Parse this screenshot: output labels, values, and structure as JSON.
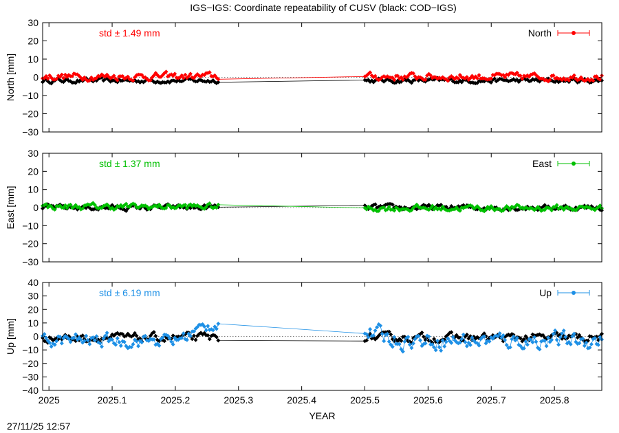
{
  "title": "IGS−IGS: Coordinate repeatability of CUSV (black: COD−IGS)",
  "timestamp": "27/11/25 12:57",
  "colors": {
    "comparison": "#000000",
    "north": "#ff0000",
    "east": "#00c000",
    "up": "#1e90e6"
  },
  "chart_data": [
    {
      "type": "line",
      "component": "North",
      "ylabel": "North [mm]",
      "xlabel": "",
      "ylim": [
        -30,
        30
      ],
      "yticks": [
        -30,
        -20,
        -10,
        0,
        10,
        20,
        30
      ],
      "ytick_labels": [
        "−30",
        "−20",
        "−10",
        "0",
        "10",
        "20",
        "30"
      ],
      "xlim": [
        2024.99,
        2025.875
      ],
      "xticks": [
        2025,
        2025.1,
        2025.2,
        2025.3,
        2025.4,
        2025.5,
        2025.6,
        2025.7,
        2025.8
      ],
      "xtick_labels": [],
      "std_label": "std ± 1.49 mm",
      "legend": "top-right",
      "series": [
        {
          "name": "North",
          "color": "#ff0000",
          "segments": [
            {
              "x_start": 2024.99,
              "x_end": 2025.268,
              "mean": 0.5,
              "amp": 1.6
            },
            {
              "x_start": 2025.5,
              "x_end": 2025.875,
              "mean": 0.3,
              "amp": 1.6
            }
          ]
        },
        {
          "name": "",
          "color": "#000000",
          "segments": [
            {
              "x_start": 2024.99,
              "x_end": 2025.268,
              "mean": -1.8,
              "amp": 1.0
            },
            {
              "x_start": 2025.5,
              "x_end": 2025.875,
              "mean": -1.8,
              "amp": 1.0
            }
          ]
        }
      ]
    },
    {
      "type": "line",
      "component": "East",
      "ylabel": "East [mm]",
      "xlabel": "",
      "ylim": [
        -30,
        30
      ],
      "yticks": [
        -30,
        -20,
        -10,
        0,
        10,
        20,
        30
      ],
      "ytick_labels": [
        "−30",
        "−20",
        "−10",
        "0",
        "10",
        "20",
        "30"
      ],
      "xlim": [
        2024.99,
        2025.875
      ],
      "xticks": [
        2025,
        2025.1,
        2025.2,
        2025.3,
        2025.4,
        2025.5,
        2025.6,
        2025.7,
        2025.8
      ],
      "xtick_labels": [],
      "std_label": "std ± 1.37 mm",
      "legend": "top-right",
      "series": [
        {
          "name": "East",
          "color": "#00c000",
          "segments": [
            {
              "x_start": 2024.99,
              "x_end": 2025.268,
              "mean": 0.5,
              "amp": 1.4
            },
            {
              "x_start": 2025.5,
              "x_end": 2025.875,
              "mean": -0.3,
              "amp": 1.4
            }
          ]
        },
        {
          "name": "",
          "color": "#000000",
          "segments": [
            {
              "x_start": 2024.99,
              "x_end": 2025.268,
              "mean": 0.0,
              "amp": 1.2
            },
            {
              "x_start": 2025.5,
              "x_end": 2025.875,
              "mean": 0.0,
              "amp": 1.2
            }
          ]
        }
      ]
    },
    {
      "type": "line",
      "component": "Up",
      "ylabel": "Up [mm]",
      "xlabel": "YEAR",
      "ylim": [
        -40,
        40
      ],
      "yticks": [
        -40,
        -30,
        -20,
        -10,
        0,
        10,
        20,
        30,
        40
      ],
      "ytick_labels": [
        "−40",
        "−30",
        "−20",
        "−10",
        "0",
        "10",
        "20",
        "30",
        "40"
      ],
      "xlim": [
        2024.99,
        2025.875
      ],
      "xticks": [
        2025,
        2025.1,
        2025.2,
        2025.3,
        2025.4,
        2025.5,
        2025.6,
        2025.7,
        2025.8
      ],
      "xtick_labels": [
        "2025",
        "2025.1",
        "2025.2",
        "2025.3",
        "2025.4",
        "2025.5",
        "2025.6",
        "2025.7",
        "2025.8"
      ],
      "std_label": "std ± 6.19 mm",
      "legend": "top-right",
      "series": [
        {
          "name": "Up",
          "color": "#1e90e6",
          "segments": [
            {
              "x_start": 2024.99,
              "x_end": 2025.268,
              "mean": -3.0,
              "amp": 4.0
            },
            {
              "x_start": 2025.5,
              "x_end": 2025.875,
              "mean": -3.0,
              "amp": 5.0
            }
          ]
        },
        {
          "name": "",
          "color": "#000000",
          "segments": [
            {
              "x_start": 2024.99,
              "x_end": 2025.268,
              "mean": -1.0,
              "amp": 2.5
            },
            {
              "x_start": 2025.5,
              "x_end": 2025.875,
              "mean": -1.0,
              "amp": 2.5
            }
          ]
        }
      ]
    }
  ]
}
